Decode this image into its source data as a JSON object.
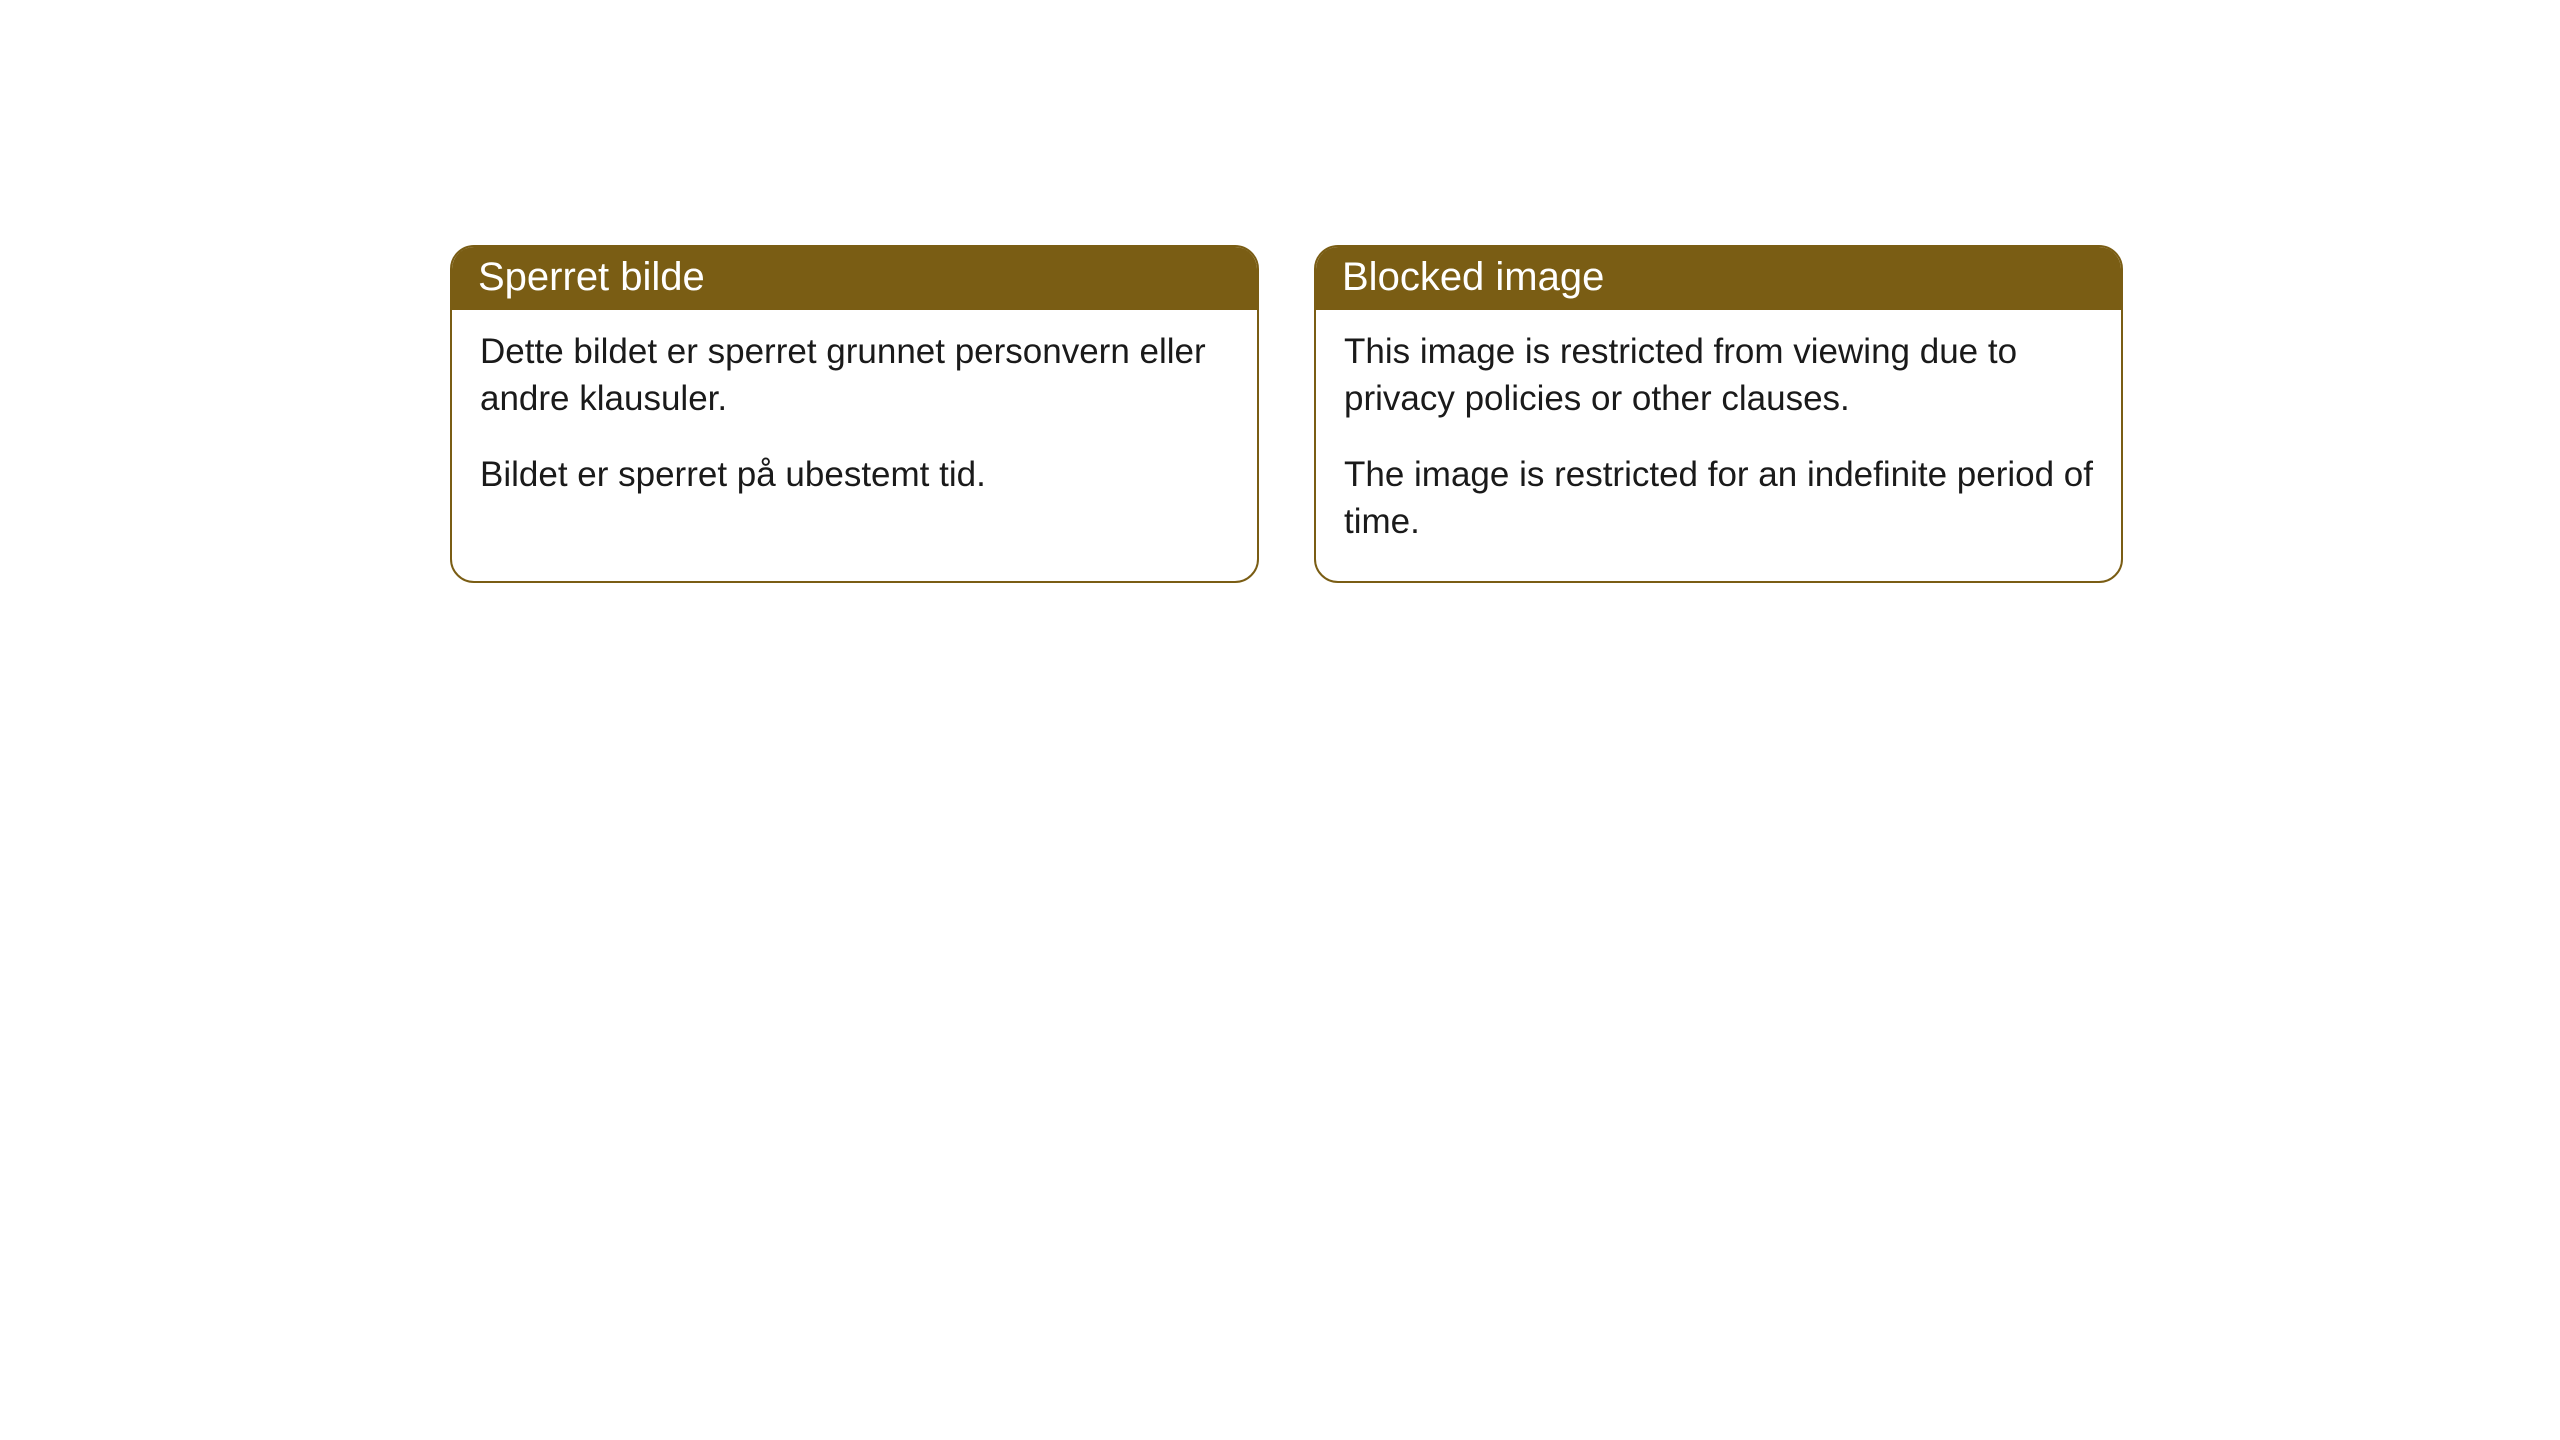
{
  "cards": [
    {
      "title": "Sperret bilde",
      "paragraph1": "Dette bildet er sperret grunnet personvern eller andre klausuler.",
      "paragraph2": "Bildet er sperret på ubestemt tid."
    },
    {
      "title": "Blocked image",
      "paragraph1": "This image is restricted from viewing due to privacy policies or other clauses.",
      "paragraph2": "The image is restricted for an indefinite period of time."
    }
  ],
  "colors": {
    "header_bg": "#7a5d14",
    "header_text": "#ffffff",
    "border": "#7a5d14",
    "body_bg": "#ffffff",
    "body_text": "#1a1a1a"
  }
}
